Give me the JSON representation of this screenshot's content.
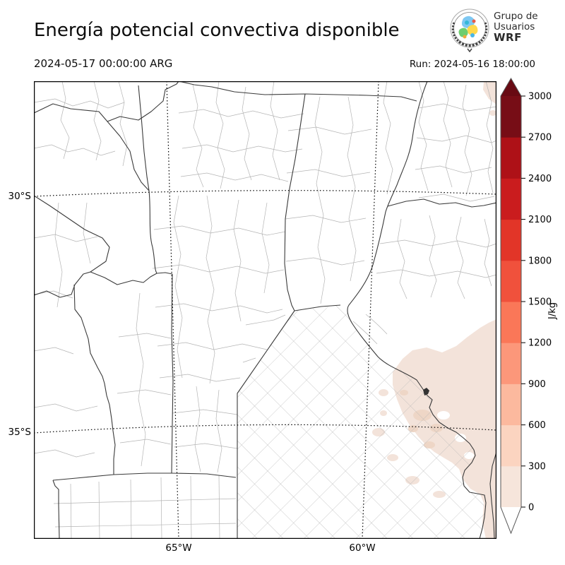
{
  "header": {
    "title": "Energía potencial convectiva disponible",
    "valid_time": "2024-05-17 00:00:00 ARG",
    "run_label": "Run: 2024-05-16 18:00:00"
  },
  "logo": {
    "line1": "Grupo de",
    "line2": "Usuarios",
    "line3": "WRF"
  },
  "map": {
    "lat_labels": [
      "30°S",
      "35°S"
    ],
    "lon_labels": [
      "65°W",
      "60°W"
    ],
    "shaded_region": "Light CAPE shading (0–600 J/kg) over Río de la Plata and eastern Buenos Aires"
  },
  "colorbar": {
    "unit": "J/kg",
    "min": 0,
    "max": 3000,
    "tick_values": [
      0,
      300,
      600,
      900,
      1200,
      1500,
      1800,
      2100,
      2400,
      2700,
      3000
    ],
    "segment_colors": [
      "#f6e5db",
      "#fbd4c0",
      "#fcb99e",
      "#fc977a",
      "#fa7758",
      "#f0513c",
      "#e23528",
      "#ca1c1e",
      "#ae1117",
      "#770d16"
    ],
    "over_color": "#680a13",
    "under_color": "#ffffff"
  }
}
